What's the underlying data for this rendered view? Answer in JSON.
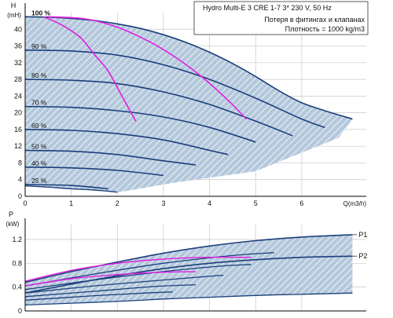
{
  "colors": {
    "curve": "#1b3f7a",
    "region": "#b4c8dc",
    "hatch": "#ffffff",
    "accent": "#e020e0",
    "grid": "#c8c8c8",
    "text": "#111111"
  },
  "header": {
    "line1": "Hydro Multi-E 3 CRE 1-7     3* 230 V, 50 Hz",
    "line2": "Потеря в фитингах и клапанах",
    "line3": "Плотность = 1000 kg/m3"
  },
  "chart_data": [
    {
      "type": "line",
      "title": "",
      "ylabel_top": "H",
      "ylabel_unit": "(mH)",
      "xlabel": "Q(m3/h)",
      "xlim": [
        0,
        7.4
      ],
      "ylim": [
        0,
        44
      ],
      "x_ticks": [
        "0",
        "1",
        "2",
        "3",
        "4",
        "5",
        "6"
      ],
      "y_ticks": [
        "0",
        "4",
        "8",
        "12",
        "16",
        "20",
        "24",
        "28",
        "32",
        "36",
        "40"
      ],
      "grid": true,
      "speed_curves": [
        {
          "name": "100 %",
          "x": [
            0,
            0.5,
            1,
            1.5,
            2,
            2.5,
            3,
            3.5,
            4,
            4.5,
            5,
            5.5,
            6,
            6.5,
            7.1
          ],
          "y": [
            43,
            42.9,
            42.6,
            42.1,
            41.3,
            40.2,
            38.7,
            36.8,
            34.5,
            31.8,
            28.7,
            25.3,
            22.4,
            20.5,
            18.5
          ]
        },
        {
          "name": "90 %",
          "x": [
            0,
            1,
            2,
            3,
            4,
            5,
            6,
            6.5
          ],
          "y": [
            35,
            34.8,
            33.8,
            31.5,
            28,
            23.5,
            18.5,
            16.5
          ]
        },
        {
          "name": "80 %",
          "x": [
            0,
            1,
            2,
            3,
            4,
            5,
            5.8
          ],
          "y": [
            28,
            27.8,
            27,
            25,
            22,
            18,
            14.5
          ]
        },
        {
          "name": "70 %",
          "x": [
            0,
            1,
            2,
            3,
            4,
            5
          ],
          "y": [
            21.5,
            21.3,
            20.5,
            19,
            16.5,
            13
          ]
        },
        {
          "name": "60 %",
          "x": [
            0,
            1,
            2,
            3,
            4,
            4.4
          ],
          "y": [
            16,
            15.8,
            15,
            13.5,
            11,
            10
          ]
        },
        {
          "name": "50 %",
          "x": [
            0,
            1,
            2,
            3,
            3.7
          ],
          "y": [
            11,
            10.8,
            10,
            8.5,
            7.5
          ]
        },
        {
          "name": "40 %",
          "x": [
            0,
            1,
            2,
            3
          ],
          "y": [
            7,
            6.8,
            6.2,
            5
          ]
        },
        {
          "name": "25 %",
          "x": [
            0,
            1,
            1.8
          ],
          "y": [
            2.8,
            2.6,
            1.8
          ]
        }
      ],
      "min_curve": {
        "x": [
          0,
          0.5,
          1,
          1.5,
          2
        ],
        "y": [
          2.5,
          2.2,
          1.8,
          1.5,
          1
        ]
      },
      "fitting_loss_curves": [
        {
          "x": [
            0.4,
            0.8,
            1.2,
            1.5,
            1.8,
            2.1,
            2.4
          ],
          "y": [
            43,
            41,
            38,
            34,
            30,
            24,
            18
          ]
        },
        {
          "x": [
            0.5,
            1.3,
            2,
            2.7,
            3.3,
            3.9,
            4.4,
            4.8
          ],
          "y": [
            43,
            42.5,
            40.5,
            37,
            33,
            28,
            23,
            18.5
          ]
        }
      ]
    },
    {
      "type": "line",
      "title": "",
      "ylabel_top": "P",
      "ylabel_unit": "(kW)",
      "xlim": [
        0,
        7.4
      ],
      "ylim": [
        0,
        1.45
      ],
      "y_ticks": [
        "0",
        "0.4",
        "0.8",
        "1.2"
      ],
      "grid": true,
      "series": [
        {
          "name": "P1",
          "x": [
            0,
            1,
            2,
            3,
            4,
            5,
            6,
            7.1
          ],
          "y": [
            0.48,
            0.66,
            0.82,
            0.97,
            1.09,
            1.18,
            1.24,
            1.28
          ]
        },
        {
          "name": "P2",
          "x": [
            0,
            1,
            2,
            3,
            4,
            5,
            6,
            7.1
          ],
          "y": [
            0.3,
            0.45,
            0.59,
            0.71,
            0.8,
            0.86,
            0.9,
            0.92
          ]
        }
      ],
      "lower_bound": {
        "x": [
          0,
          1,
          2,
          3,
          4,
          5,
          6,
          7.1
        ],
        "y": [
          0.1,
          0.13,
          0.16,
          0.2,
          0.23,
          0.26,
          0.28,
          0.3
        ]
      },
      "inner_curves": [
        {
          "x": [
            0,
            1.5,
            3,
            4.5,
            5.4
          ],
          "y": [
            0.42,
            0.62,
            0.8,
            0.93,
            0.98
          ]
        },
        {
          "x": [
            0,
            1.5,
            3,
            4.2,
            4.9
          ],
          "y": [
            0.36,
            0.52,
            0.66,
            0.75,
            0.78
          ]
        },
        {
          "x": [
            0,
            1.5,
            3,
            3.8,
            4.3
          ],
          "y": [
            0.3,
            0.42,
            0.52,
            0.57,
            0.6
          ]
        },
        {
          "x": [
            0,
            1.5,
            2.8,
            3.7
          ],
          "y": [
            0.24,
            0.33,
            0.41,
            0.44
          ]
        },
        {
          "x": [
            0,
            1.4,
            2.6,
            3.2
          ],
          "y": [
            0.18,
            0.25,
            0.3,
            0.32
          ]
        }
      ],
      "accent_curves": [
        {
          "x": [
            0,
            1,
            2,
            3,
            4,
            4.9
          ],
          "y": [
            0.5,
            0.68,
            0.8,
            0.87,
            0.9,
            0.9
          ]
        },
        {
          "x": [
            0,
            1,
            2,
            3,
            3.7
          ],
          "y": [
            0.42,
            0.54,
            0.61,
            0.65,
            0.66
          ]
        }
      ]
    }
  ]
}
